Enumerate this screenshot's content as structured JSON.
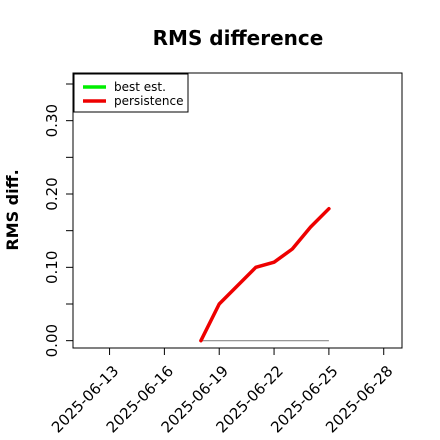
{
  "chart_data": {
    "type": "line",
    "title": "RMS difference",
    "xlabel": "",
    "ylabel": "RMS diff.",
    "x_type": "date",
    "xlim": [
      "2025-06-11",
      "2025-06-29"
    ],
    "ylim": [
      -0.01,
      0.365
    ],
    "x_ticks": [
      "2025-06-13",
      "2025-06-16",
      "2025-06-19",
      "2025-06-22",
      "2025-06-25",
      "2025-06-28"
    ],
    "x_minor_ticks": [
      "2025-06-13",
      "2025-06-16",
      "2025-06-19",
      "2025-06-22",
      "2025-06-25",
      "2025-06-28"
    ],
    "y_ticks": [
      0.0,
      0.1,
      0.2,
      0.3
    ],
    "y_tick_labels": [
      "0.00",
      "0.10",
      "0.20",
      "0.30"
    ],
    "y_minor_ticks": [
      0.05,
      0.15,
      0.25,
      0.35
    ],
    "grid": false,
    "legend": "top-left",
    "reference_line": {
      "y": 0.0,
      "x": [
        "2025-06-18",
        "2025-06-25"
      ],
      "color": "#888888"
    },
    "series": [
      {
        "name": "best est.",
        "color": "#00ee00",
        "x": [],
        "values": []
      },
      {
        "name": "persistence",
        "color": "#ee0000",
        "x": [
          "2025-06-18",
          "2025-06-19",
          "2025-06-21",
          "2025-06-22",
          "2025-06-23",
          "2025-06-24",
          "2025-06-25"
        ],
        "values": [
          0.0,
          0.05,
          0.1,
          0.107,
          0.125,
          0.155,
          0.18
        ]
      }
    ]
  }
}
